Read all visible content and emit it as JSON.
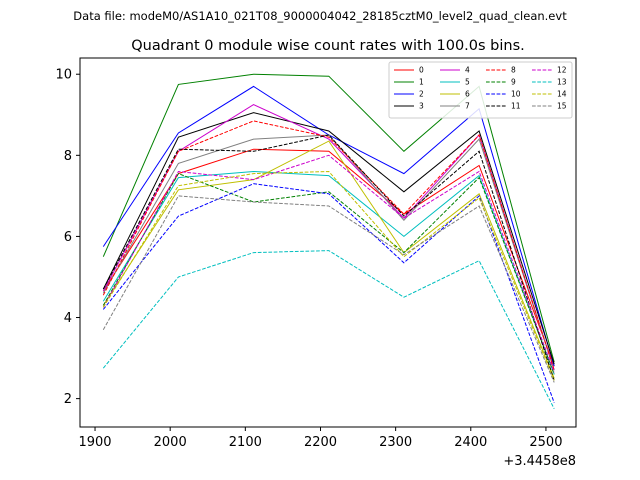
{
  "chart_data": {
    "type": "line",
    "suptitle": "Data file: modeM0/AS1A10_021T08_9000004042_28185cztM0_level2_quad_clean.evt",
    "title": "Quadrant 0 module wise count rates with 100.0s bins.",
    "xlabel": "",
    "ylabel": "",
    "x_offset_label": "+3.4458e8",
    "xlim": [
      1880,
      2540
    ],
    "ylim": [
      1.3,
      10.4
    ],
    "x_ticks": [
      1900,
      2000,
      2100,
      2200,
      2300,
      2400,
      2500
    ],
    "x_tick_labels": [
      "1900",
      "2000",
      "2100",
      "2200",
      "2300",
      "2400",
      "2500"
    ],
    "y_ticks": [
      2,
      4,
      6,
      8,
      10
    ],
    "y_tick_labels": [
      "2",
      "4",
      "6",
      "8",
      "10"
    ],
    "legend_position": "top-right",
    "x": [
      1911,
      2011,
      2111,
      2211,
      2311,
      2411,
      2511
    ],
    "series": [
      {
        "name": "0",
        "color": "#ff0000",
        "dash": "solid",
        "values": [
          4.65,
          7.55,
          8.15,
          8.1,
          6.55,
          7.75,
          2.8
        ]
      },
      {
        "name": "1",
        "color": "#008000",
        "dash": "solid",
        "values": [
          5.5,
          9.75,
          10.0,
          9.95,
          8.1,
          9.7,
          2.9
        ]
      },
      {
        "name": "2",
        "color": "#0000ff",
        "dash": "solid",
        "values": [
          5.75,
          8.55,
          9.7,
          8.5,
          7.55,
          9.15,
          2.8
        ]
      },
      {
        "name": "3",
        "color": "#000000",
        "dash": "solid",
        "values": [
          4.7,
          8.45,
          9.05,
          8.6,
          7.1,
          8.6,
          2.85
        ]
      },
      {
        "name": "4",
        "color": "#cc00cc",
        "dash": "solid",
        "values": [
          4.65,
          8.1,
          9.25,
          8.4,
          6.45,
          8.5,
          2.7
        ]
      },
      {
        "name": "5",
        "color": "#00bfbf",
        "dash": "solid",
        "values": [
          4.4,
          7.45,
          7.6,
          7.5,
          6.0,
          7.5,
          2.6
        ]
      },
      {
        "name": "6",
        "color": "#bfbf00",
        "dash": "solid",
        "values": [
          4.3,
          7.15,
          7.4,
          8.35,
          5.6,
          7.05,
          2.5
        ]
      },
      {
        "name": "7",
        "color": "#808080",
        "dash": "solid",
        "values": [
          4.6,
          7.8,
          8.4,
          8.5,
          6.4,
          8.4,
          2.7
        ]
      },
      {
        "name": "8",
        "color": "#ff0000",
        "dash": "dashed",
        "values": [
          4.55,
          8.1,
          8.85,
          8.45,
          6.55,
          8.5,
          2.7
        ]
      },
      {
        "name": "9",
        "color": "#008000",
        "dash": "dashed",
        "values": [
          4.3,
          7.55,
          6.85,
          7.1,
          5.6,
          7.45,
          2.6
        ]
      },
      {
        "name": "10",
        "color": "#0000ff",
        "dash": "dashed",
        "values": [
          4.2,
          6.5,
          7.3,
          7.05,
          5.35,
          7.0,
          1.9
        ]
      },
      {
        "name": "11",
        "color": "#000000",
        "dash": "dashed",
        "values": [
          4.7,
          8.15,
          8.1,
          8.5,
          6.5,
          8.1,
          2.45
        ]
      },
      {
        "name": "12",
        "color": "#cc00cc",
        "dash": "dashed",
        "values": [
          4.25,
          7.6,
          7.4,
          8.0,
          6.45,
          7.6,
          2.65
        ]
      },
      {
        "name": "13",
        "color": "#00bfbf",
        "dash": "dashed",
        "values": [
          2.75,
          5.0,
          5.6,
          5.65,
          4.5,
          5.4,
          1.75
        ]
      },
      {
        "name": "14",
        "color": "#bfbf00",
        "dash": "dashed",
        "values": [
          4.25,
          7.25,
          7.55,
          7.6,
          5.5,
          6.95,
          2.45
        ]
      },
      {
        "name": "15",
        "color": "#808080",
        "dash": "dashed",
        "values": [
          3.7,
          7.0,
          6.85,
          6.75,
          5.55,
          6.75,
          2.4
        ]
      }
    ]
  }
}
